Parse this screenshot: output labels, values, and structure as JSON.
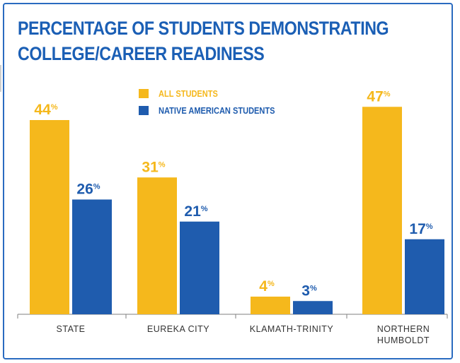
{
  "title_lines": [
    "PERCENTAGE OF STUDENTS DEMONSTRATING",
    "COLLEGE/CAREER READINESS"
  ],
  "chart_data": {
    "type": "bar",
    "title": "PERCENTAGE OF STUDENTS DEMONSTRATING COLLEGE/CAREER READINESS",
    "categories": [
      "STATE",
      "EUREKA CITY",
      "KLAMATH-TRINITY",
      "NORTHERN HUMBOLDT"
    ],
    "category_lines": [
      [
        "STATE"
      ],
      [
        "EUREKA CITY"
      ],
      [
        "KLAMATH-TRINITY"
      ],
      [
        "NORTHERN",
        "HUMBOLDT"
      ]
    ],
    "series": [
      {
        "name": "ALL STUDENTS",
        "values": [
          44,
          31,
          4,
          47
        ],
        "color": "#f5b81c"
      },
      {
        "name": "NATIVE AMERICAN STUDENTS",
        "values": [
          26,
          21,
          3,
          17
        ],
        "color": "#1f5cae"
      }
    ],
    "value_suffix": "%",
    "ylim": [
      0,
      50
    ],
    "legend_position": "top-center",
    "grid": false
  },
  "colors": {
    "title": "#1b5fb5",
    "frame": "#2a6bc0",
    "axis": "#7f7f7f",
    "category_label": "#333333"
  }
}
